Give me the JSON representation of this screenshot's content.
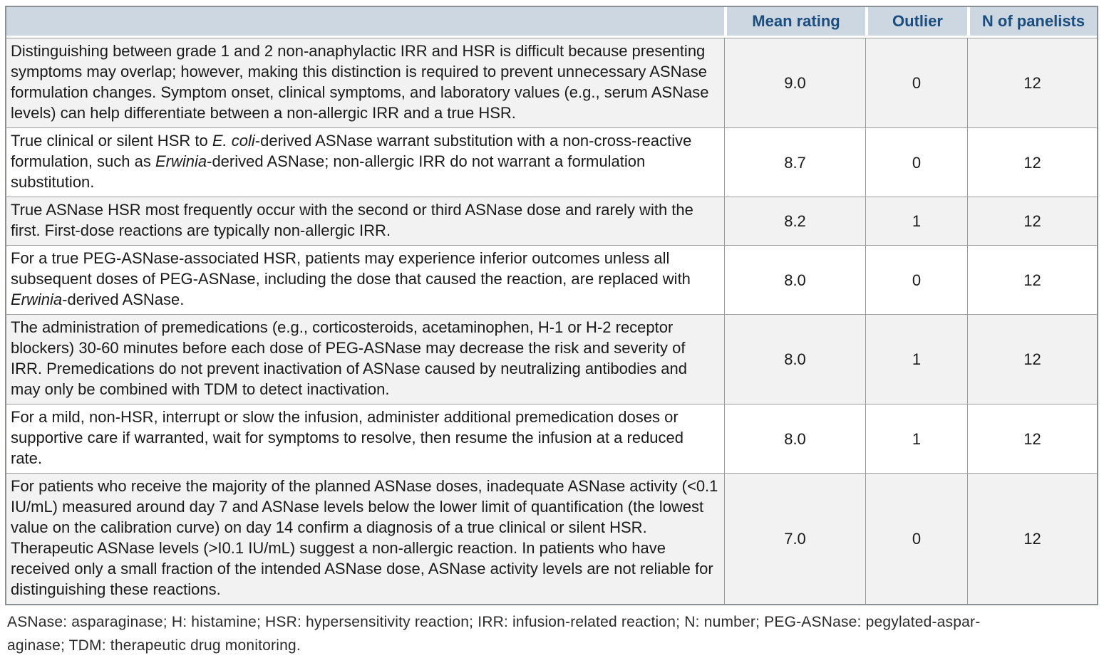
{
  "colors": {
    "header-bg": "#ccd7e1",
    "header-text": "#1b4d7e",
    "outer-border": "#8b9095",
    "cell-border": "#9b9b9b",
    "row-alt-bg": "#f2f2f2",
    "body-text": "#1a1a1a",
    "footnote-text": "#2b2b2b"
  },
  "table": {
    "headers": {
      "statement": "",
      "mean": "Mean rating",
      "outlier": "Outlier",
      "n": "N of panelists"
    },
    "rows": [
      {
        "segments": [
          {
            "t": "Distinguishing between grade 1 and 2 non-anaphylactic IRR and HSR is difficult because presenting symptoms may overlap; however, making this distinction is required to prevent unnecessary ASNase formulation changes. Symptom onset, clinical symptoms, and laboratory values (e.g., serum ASNase levels) can help differentiate between a non-allergic IRR and a true HSR."
          }
        ],
        "mean": "9.0",
        "outlier": "0",
        "n": "12"
      },
      {
        "segments": [
          {
            "t": "True clinical or silent HSR to "
          },
          {
            "t": "E. coli",
            "i": true
          },
          {
            "t": "-derived ASNase warrant substitution with a non-cross-reactive formulation, such as "
          },
          {
            "t": "Erwinia",
            "i": true
          },
          {
            "t": "-derived ASNase; non-allergic IRR do not warrant a formulation substitution."
          }
        ],
        "mean": "8.7",
        "outlier": "0",
        "n": "12"
      },
      {
        "segments": [
          {
            "t": "True ASNase HSR most frequently occur with the second or third ASNase dose and rarely with the first. First-dose reactions are typically non-allergic IRR."
          }
        ],
        "mean": "8.2",
        "outlier": "1",
        "n": "12"
      },
      {
        "segments": [
          {
            "t": "For a true PEG-ASNase-associated HSR, patients may experience inferior outcomes unless all subsequent doses of PEG-ASNase, including the dose that caused the reaction, are replaced with "
          },
          {
            "t": "Erwinia",
            "i": true
          },
          {
            "t": "-derived ASNase."
          }
        ],
        "mean": "8.0",
        "outlier": "0",
        "n": "12"
      },
      {
        "segments": [
          {
            "t": "The administration of premedications (e.g., corticosteroids, acetaminophen, H-1 or H-2 receptor blockers) 30-60 minutes before each dose of PEG-ASNase may decrease the risk and severity of IRR. Premedications do not prevent inactivation of ASNase caused by neutralizing antibodies and may only be combined with TDM to detect inactivation."
          }
        ],
        "mean": "8.0",
        "outlier": "1",
        "n": "12"
      },
      {
        "segments": [
          {
            "t": "For a mild, non-HSR, interrupt or slow the infusion, administer additional premedication doses or supportive care if warranted, wait for symptoms to resolve, then resume the infusion at a reduced rate."
          }
        ],
        "mean": "8.0",
        "outlier": "1",
        "n": "12"
      },
      {
        "segments": [
          {
            "t": "For patients who receive the majority of the planned ASNase doses, inadequate ASNase activity (<0.1 IU/mL) measured around day 7 and ASNase levels below the lower limit of quantification (the lowest value on the calibration curve) on day 14 confirm a diagnosis of a true clinical or silent HSR. Therapeutic ASNase levels (>I0.1 IU/mL) suggest a non-allergic reaction. In patients who have received only a small fraction of the intended ASNase dose, ASNase activity levels are not reliable for distinguishing these reactions."
          }
        ],
        "mean": "7.0",
        "outlier": "0",
        "n": "12"
      }
    ]
  },
  "footnote": {
    "line1": "ASNase: asparaginase; H: histamine; HSR: hypersensitivity reaction; IRR: infusion-related reaction; N: number; PEG-ASNase: pegylated-aspar-",
    "line2": "aginase; TDM: therapeutic drug monitoring."
  }
}
